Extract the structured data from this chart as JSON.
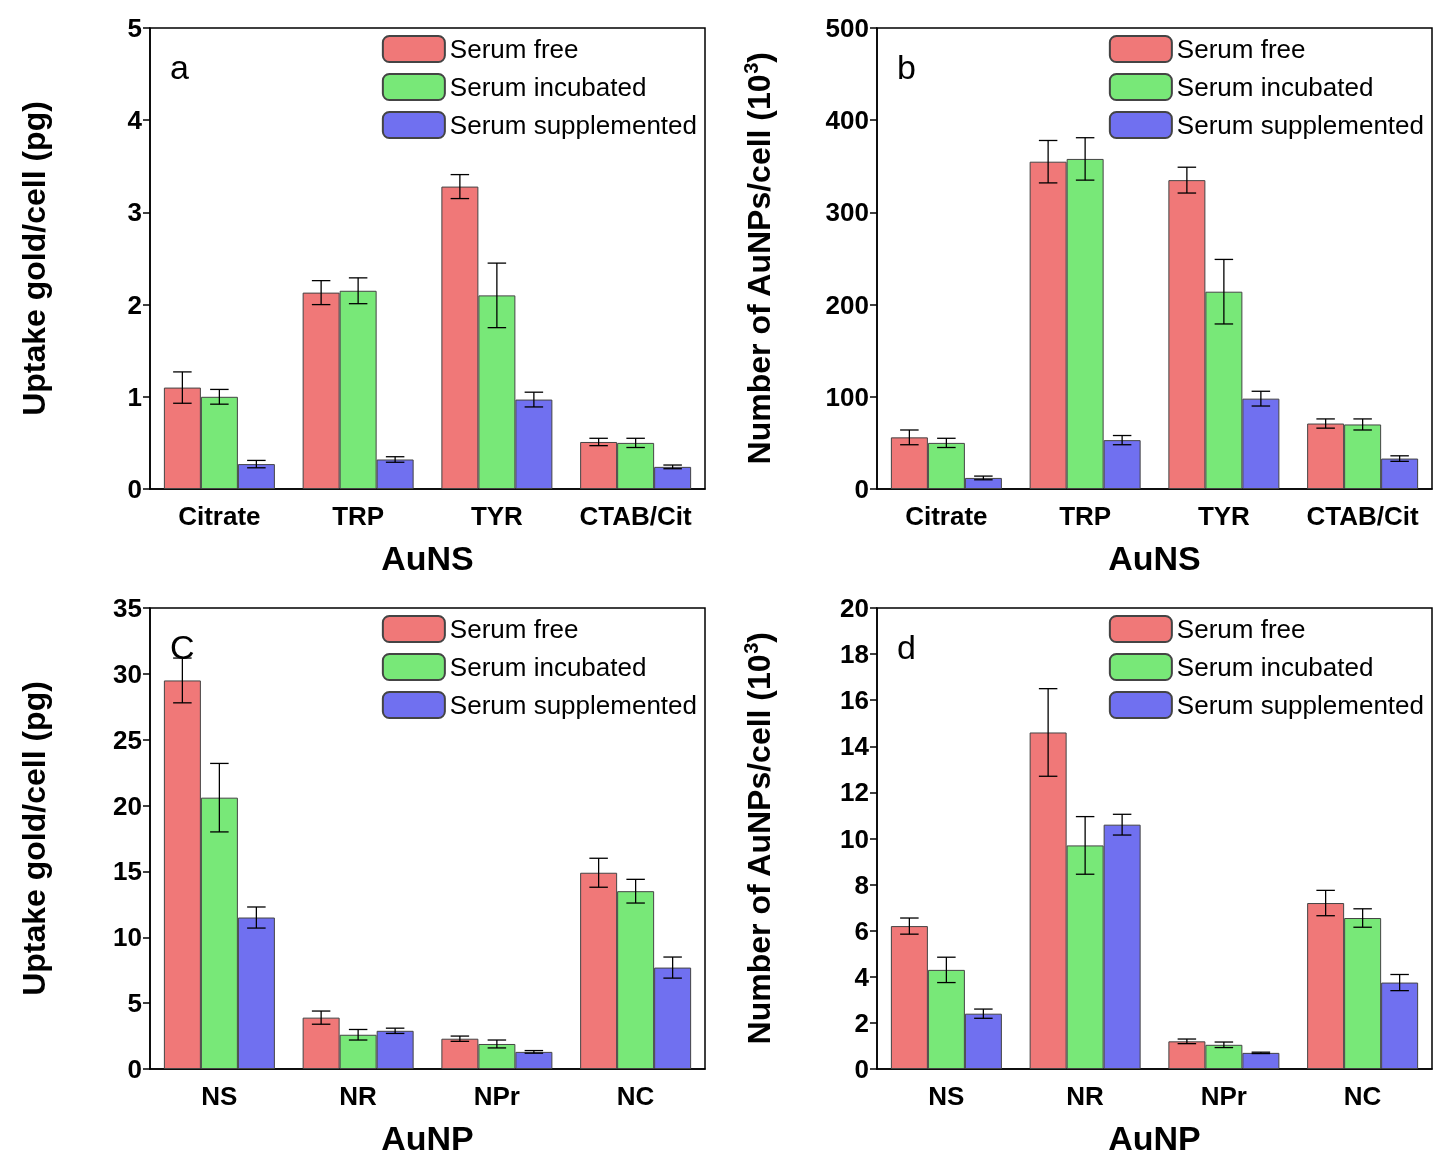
{
  "chart_data": [
    {
      "type": "bar",
      "categories": [
        "Citrate",
        "TRP",
        "TYR",
        "CTAB/Cit"
      ],
      "xlabel": "AuNS",
      "ylabel": "Uptake gold/cell (pg)",
      "ylim": [
        0,
        5
      ],
      "yticks": [
        0,
        1,
        2,
        3,
        4,
        5
      ],
      "legend": "top right",
      "annotations": [
        "a"
      ],
      "series": [
        {
          "name": "Serum free",
          "color": "#f07878",
          "values": [
            1.1,
            2.13,
            3.28,
            0.51
          ],
          "errors": [
            0.17,
            0.13,
            0.13,
            0.04
          ]
        },
        {
          "name": "Serum incubated",
          "color": "#78e878",
          "values": [
            1.0,
            2.15,
            2.1,
            0.5
          ],
          "errors": [
            0.08,
            0.14,
            0.35,
            0.05
          ]
        },
        {
          "name": "Serum supplemented",
          "color": "#7070f0",
          "values": [
            0.27,
            0.32,
            0.97,
            0.24
          ],
          "errors": [
            0.04,
            0.03,
            0.08,
            0.02
          ]
        }
      ]
    },
    {
      "type": "bar",
      "categories": [
        "Citrate",
        "TRP",
        "TYR",
        "CTAB/Cit"
      ],
      "xlabel": "AuNS",
      "ylabel": "Number of AuNPs/cell (10$^{3}$)",
      "ylim": [
        0,
        500
      ],
      "yticks": [
        0,
        100,
        200,
        300,
        400,
        500
      ],
      "legend": "top right",
      "annotations": [
        "b"
      ],
      "series": [
        {
          "name": "Serum free",
          "color": "#f07878",
          "values": [
            56,
            355,
            335,
            71
          ],
          "errors": [
            8,
            23,
            14,
            5
          ]
        },
        {
          "name": "Serum incubated",
          "color": "#78e878",
          "values": [
            50,
            358,
            214,
            70
          ],
          "errors": [
            5,
            23,
            35,
            6
          ]
        },
        {
          "name": "Serum supplemented",
          "color": "#7070f0",
          "values": [
            12,
            53,
            98,
            33
          ],
          "errors": [
            2,
            5,
            8,
            3
          ]
        }
      ]
    },
    {
      "type": "bar",
      "categories": [
        "NS",
        "NR",
        "NPr",
        "NC"
      ],
      "xlabel": "AuNP",
      "ylabel": "Uptake gold/cell (pg)",
      "ylim": [
        0,
        35
      ],
      "yticks": [
        0,
        5,
        10,
        15,
        20,
        25,
        30,
        35
      ],
      "legend": "top right",
      "annotations": [
        "C"
      ],
      "series": [
        {
          "name": "Serum free",
          "color": "#f07878",
          "values": [
            29.5,
            3.9,
            2.3,
            14.9
          ],
          "errors": [
            1.7,
            0.5,
            0.2,
            1.1
          ]
        },
        {
          "name": "Serum incubated",
          "color": "#78e878",
          "values": [
            20.6,
            2.6,
            1.9,
            13.5
          ],
          "errors": [
            2.6,
            0.4,
            0.3,
            0.9
          ]
        },
        {
          "name": "Serum supplemented",
          "color": "#7070f0",
          "values": [
            11.5,
            2.9,
            1.3,
            7.7
          ],
          "errors": [
            0.8,
            0.2,
            0.1,
            0.8
          ]
        }
      ]
    },
    {
      "type": "bar",
      "categories": [
        "NS",
        "NR",
        "NPr",
        "NC"
      ],
      "xlabel": "AuNP",
      "ylabel": "Number of AuNPs/cell (10$^{3}$)",
      "ylim": [
        0,
        20
      ],
      "yticks": [
        0,
        2,
        4,
        6,
        8,
        10,
        12,
        14,
        16,
        18,
        20
      ],
      "legend": "top right",
      "annotations": [
        "d"
      ],
      "series": [
        {
          "name": "Serum free",
          "color": "#f07878",
          "values": [
            6.2,
            14.6,
            1.2,
            7.2
          ],
          "errors": [
            0.35,
            1.9,
            0.1,
            0.55
          ]
        },
        {
          "name": "Serum incubated",
          "color": "#78e878",
          "values": [
            4.3,
            9.7,
            1.05,
            6.55
          ],
          "errors": [
            0.55,
            1.25,
            0.12,
            0.4
          ]
        },
        {
          "name": "Serum supplemented",
          "color": "#7070f0",
          "values": [
            2.4,
            10.6,
            0.7,
            3.75
          ],
          "errors": [
            0.2,
            0.45,
            0.03,
            0.35
          ]
        }
      ]
    }
  ]
}
